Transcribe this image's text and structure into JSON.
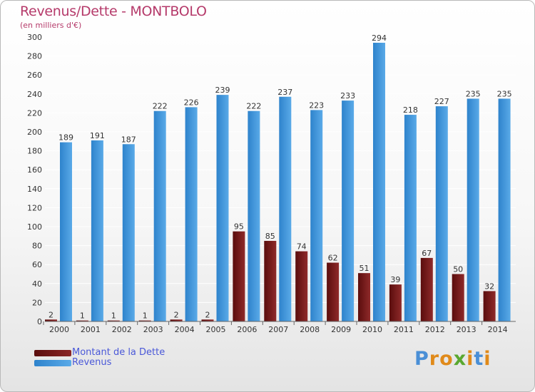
{
  "title": "Revenus/Dette - MONTBOLO",
  "subtitle": "(en milliers d'€)",
  "logo": {
    "text": "Proxiti",
    "letters": [
      {
        "ch": "P",
        "color": "#4a8fd6"
      },
      {
        "ch": "r",
        "color": "#e08a1a"
      },
      {
        "ch": "o",
        "color": "#e08a1a"
      },
      {
        "ch": "x",
        "color": "#5aa830"
      },
      {
        "ch": "i",
        "color": "#e08a1a"
      },
      {
        "ch": "t",
        "color": "#4a8fd6"
      },
      {
        "ch": "i",
        "color": "#e08a1a"
      }
    ]
  },
  "legend": {
    "debt_label": "Montant de la Dette",
    "revenue_label": "Revenus"
  },
  "colors": {
    "debt_dark": "#5a0d0d",
    "debt_light": "#8f2a2a",
    "rev_dark": "#2e83cc",
    "rev_light": "#5aaae8",
    "grid": "#ffffff",
    "axis_text": "#333333"
  },
  "chart_data": {
    "type": "bar",
    "title": "Revenus/Dette - MONTBOLO",
    "ylabel": "(en milliers d'€)",
    "ylim": [
      0,
      300
    ],
    "yticks": [
      0,
      20,
      40,
      60,
      80,
      100,
      120,
      140,
      160,
      180,
      200,
      220,
      240,
      260,
      280,
      300
    ],
    "categories": [
      "2000",
      "2001",
      "2002",
      "2003",
      "2004",
      "2005",
      "2006",
      "2007",
      "2008",
      "2009",
      "2010",
      "2011",
      "2012",
      "2013",
      "2014"
    ],
    "series": [
      {
        "name": "Montant de la Dette",
        "values": [
          2,
          1,
          1,
          1,
          2,
          2,
          95,
          85,
          74,
          62,
          51,
          39,
          67,
          50,
          32
        ],
        "labels": [
          "2",
          "1",
          "1",
          "1",
          "2",
          "2",
          "95",
          "85",
          "74",
          "62",
          "51",
          "39",
          "67",
          "50",
          "32"
        ]
      },
      {
        "name": "Revenus",
        "values": [
          189,
          191,
          187,
          222,
          226,
          239,
          222,
          237,
          223,
          233,
          294,
          218,
          227,
          235,
          235
        ],
        "labels": [
          "189",
          "191",
          "187",
          "222",
          "226",
          "239",
          "222",
          "237",
          "223",
          "233",
          "294",
          "218",
          "227",
          "235",
          "235"
        ]
      }
    ],
    "grid": true,
    "legend_position": "bottom-left"
  }
}
